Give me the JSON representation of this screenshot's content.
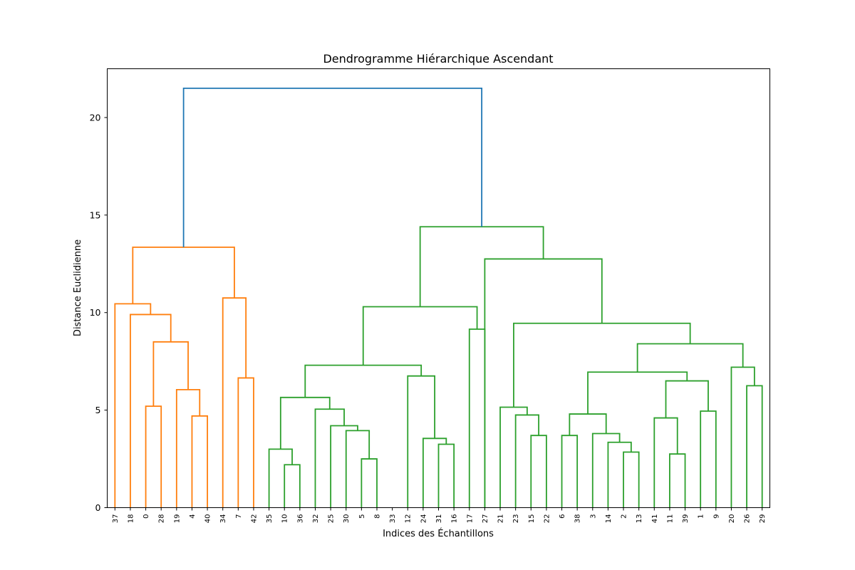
{
  "chart_data": {
    "type": "dendrogram",
    "title": "Dendrogramme Hiérarchique Ascendant",
    "xlabel": "Indices des Échantillons",
    "ylabel": "Distance Euclidienne",
    "ylim": [
      0,
      22.5
    ],
    "yticks": [
      0,
      5,
      10,
      15,
      20
    ],
    "grid": false,
    "colors": {
      "cluster_orange": "#ff7f0e",
      "cluster_green": "#2ca02c",
      "root": "#1f77b4"
    },
    "leaves": [
      "37",
      "18",
      "0",
      "28",
      "19",
      "4",
      "40",
      "34",
      "7",
      "42",
      "35",
      "10",
      "36",
      "32",
      "25",
      "30",
      "5",
      "8",
      "33",
      "12",
      "24",
      "31",
      "16",
      "17",
      "27",
      "21",
      "23",
      "15",
      "22",
      "6",
      "38",
      "3",
      "14",
      "2",
      "13",
      "41",
      "11",
      "39",
      "1",
      "9",
      "20",
      "26",
      "29"
    ],
    "links": [
      {
        "id": "n28_5_8",
        "left": "16",
        "right": "17",
        "height": 2.5,
        "color": "cluster_green"
      },
      {
        "id": "n10_36",
        "left": "11",
        "right": "12",
        "height": 2.2,
        "color": "cluster_green"
      },
      {
        "id": "n11_39",
        "left": "36",
        "right": "37",
        "height": 2.75,
        "color": "cluster_green"
      },
      {
        "id": "n2_13",
        "left": "33",
        "right": "34",
        "height": 2.85,
        "color": "cluster_green"
      },
      {
        "id": "n35_x",
        "left": "10",
        "right": "n10_36",
        "height": 3.0,
        "color": "cluster_green"
      },
      {
        "id": "n24_31",
        "left": "21",
        "right": "22",
        "height": 3.25,
        "color": "cluster_green"
      },
      {
        "id": "n14_x",
        "left": "32",
        "right": "n2_13",
        "height": 3.35,
        "color": "cluster_green"
      },
      {
        "id": "n12_x",
        "left": "20",
        "right": "n24_31",
        "height": 3.55,
        "color": "cluster_green"
      },
      {
        "id": "n15_22",
        "left": "27",
        "right": "28",
        "height": 3.7,
        "color": "cluster_green"
      },
      {
        "id": "n6_38",
        "left": "29",
        "right": "30",
        "height": 3.7,
        "color": "cluster_green"
      },
      {
        "id": "n3_x",
        "left": "31",
        "right": "n14_x",
        "height": 3.8,
        "color": "cluster_green"
      },
      {
        "id": "n30_x",
        "left": "15",
        "right": "n28_5_8",
        "height": 3.95,
        "color": "cluster_green"
      },
      {
        "id": "n25_x",
        "left": "14",
        "right": "n30_x",
        "height": 4.2,
        "color": "cluster_green"
      },
      {
        "id": "n41_x",
        "left": "35",
        "right": "n11_39",
        "height": 4.6,
        "color": "cluster_green"
      },
      {
        "id": "n4_40",
        "left": "5",
        "right": "6",
        "height": 4.7,
        "color": "cluster_orange"
      },
      {
        "id": "n23_x",
        "left": "26",
        "right": "n15_22",
        "height": 4.75,
        "color": "cluster_green"
      },
      {
        "id": "n6_3",
        "left": "n6_38",
        "right": "n3_x",
        "height": 4.8,
        "color": "cluster_green"
      },
      {
        "id": "n1_9",
        "left": "38",
        "right": "39",
        "height": 4.95,
        "color": "cluster_green"
      },
      {
        "id": "n32_x",
        "left": "13",
        "right": "n25_x",
        "height": 5.05,
        "color": "cluster_green"
      },
      {
        "id": "n21_x",
        "left": "25",
        "right": "n23_x",
        "height": 5.15,
        "color": "cluster_green"
      },
      {
        "id": "n0_28",
        "left": "2",
        "right": "3",
        "height": 5.2,
        "color": "cluster_orange"
      },
      {
        "id": "nL1",
        "left": "n35_x",
        "right": "n32_x",
        "height": 5.65,
        "color": "cluster_green"
      },
      {
        "id": "n19_x",
        "left": "4",
        "right": "n4_40",
        "height": 6.05,
        "color": "cluster_orange"
      },
      {
        "id": "n26_29",
        "left": "41",
        "right": "42",
        "height": 6.25,
        "color": "cluster_green"
      },
      {
        "id": "n41_1",
        "left": "n41_x",
        "right": "n1_9",
        "height": 6.5,
        "color": "cluster_green"
      },
      {
        "id": "n7_42",
        "left": "8",
        "right": "9",
        "height": 6.65,
        "color": "cluster_orange"
      },
      {
        "id": "n33_x",
        "left": "19",
        "right": "n12_x",
        "height": 6.75,
        "color": "cluster_green"
      },
      {
        "id": "n6_41",
        "left": "n6_3",
        "right": "n41_1",
        "height": 6.95,
        "color": "cluster_green"
      },
      {
        "id": "n20_x",
        "left": "40",
        "right": "n26_29",
        "height": 7.2,
        "color": "cluster_green"
      },
      {
        "id": "nL2",
        "left": "nL1",
        "right": "n33_x",
        "height": 7.3,
        "color": "cluster_green"
      },
      {
        "id": "n6_20",
        "left": "n6_41",
        "right": "n20_x",
        "height": 8.4,
        "color": "cluster_green"
      },
      {
        "id": "n0_19",
        "left": "n0_28",
        "right": "n19_x",
        "height": 8.5,
        "color": "cluster_orange"
      },
      {
        "id": "n16_17",
        "left": "23",
        "right": "24",
        "height": 9.15,
        "color": "cluster_green"
      },
      {
        "id": "n21_6",
        "left": "n21_x",
        "right": "n6_20",
        "height": 9.45,
        "color": "cluster_green"
      },
      {
        "id": "n18_x",
        "left": "1",
        "right": "n0_19",
        "height": 9.9,
        "color": "cluster_orange"
      },
      {
        "id": "nL3",
        "left": "nL2",
        "right": "n16_17",
        "height": 10.3,
        "color": "cluster_green"
      },
      {
        "id": "n37_x",
        "left": "0",
        "right": "n18_x",
        "height": 10.45,
        "color": "cluster_orange"
      },
      {
        "id": "n34_x",
        "left": "7",
        "right": "n7_42",
        "height": 10.75,
        "color": "cluster_orange"
      },
      {
        "id": "n27_x",
        "left": "24b",
        "right": "n21_6",
        "height": 12.75,
        "color": "cluster_green"
      },
      {
        "id": "nOrange",
        "left": "n37_x",
        "right": "n34_x",
        "height": 13.35,
        "color": "cluster_orange"
      },
      {
        "id": "nGreen",
        "left": "nL3",
        "right": "n27_x",
        "height": 14.4,
        "color": "cluster_green"
      },
      {
        "id": "nRoot",
        "left": "nOrange",
        "right": "nGreen",
        "height": 21.5,
        "color": "root"
      }
    ]
  }
}
